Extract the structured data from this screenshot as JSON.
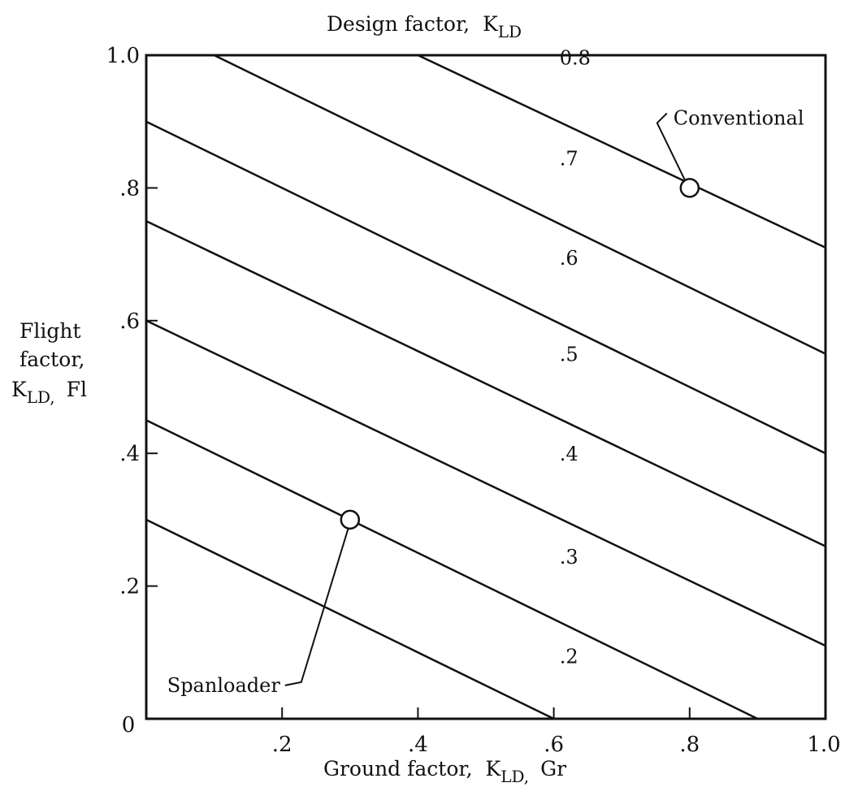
{
  "chart_data": {
    "type": "line",
    "title": "Design factor,",
    "title_sub": "K",
    "title_subscript": "LD",
    "xlabel": "Ground factor,",
    "xlabel_sub": "K",
    "xlabel_subscript": "LD,",
    "xlabel_suffix": "Gr",
    "ylabel_line1": "Flight",
    "ylabel_line2": "factor,",
    "ylabel_sub": "K",
    "ylabel_subscript": "LD,",
    "ylabel_suffix": "Fl",
    "xlim": [
      0,
      1.0
    ],
    "ylim": [
      0,
      1.0
    ],
    "x_ticks": [
      {
        "value": 0,
        "label": "0"
      },
      {
        "value": 0.2,
        "label": ".2"
      },
      {
        "value": 0.4,
        "label": ".4"
      },
      {
        "value": 0.6,
        "label": ".6"
      },
      {
        "value": 0.8,
        "label": ".8"
      },
      {
        "value": 1.0,
        "label": "1.0"
      }
    ],
    "y_ticks": [
      {
        "value": 0.2,
        "label": ".2"
      },
      {
        "value": 0.4,
        "label": ".4"
      },
      {
        "value": 0.6,
        "label": ".6"
      },
      {
        "value": 0.8,
        "label": ".8"
      },
      {
        "value": 1.0,
        "label": "1.0"
      }
    ],
    "grid": false,
    "series": [
      {
        "name": ".2",
        "label_x": 0.52,
        "points": [
          [
            0,
            0.3
          ],
          [
            0.6,
            0
          ]
        ]
      },
      {
        "name": ".3",
        "label_x": 0.52,
        "points": [
          [
            0,
            0.45
          ],
          [
            0.9,
            0
          ]
        ]
      },
      {
        "name": ".4",
        "label_x": 0.52,
        "points": [
          [
            0,
            0.6
          ],
          [
            1.0,
            0.11
          ]
        ]
      },
      {
        "name": ".5",
        "label_x": 0.52,
        "points": [
          [
            0,
            0.75
          ],
          [
            1.0,
            0.26
          ]
        ]
      },
      {
        "name": ".6",
        "label_x": 0.52,
        "points": [
          [
            0,
            0.9
          ],
          [
            1.0,
            0.4
          ]
        ]
      },
      {
        "name": ".7",
        "label_x": 0.52,
        "points": [
          [
            0.1,
            1.0
          ],
          [
            1.0,
            0.55
          ]
        ]
      },
      {
        "name": "0.8",
        "label_x": 0.52,
        "points": [
          [
            0.4,
            1.0
          ],
          [
            1.0,
            0.71
          ]
        ]
      }
    ],
    "markers": [
      {
        "name": "Conventional",
        "x": 0.8,
        "y": 0.8
      },
      {
        "name": "Spanloader",
        "x": 0.3,
        "y": 0.3
      }
    ]
  }
}
